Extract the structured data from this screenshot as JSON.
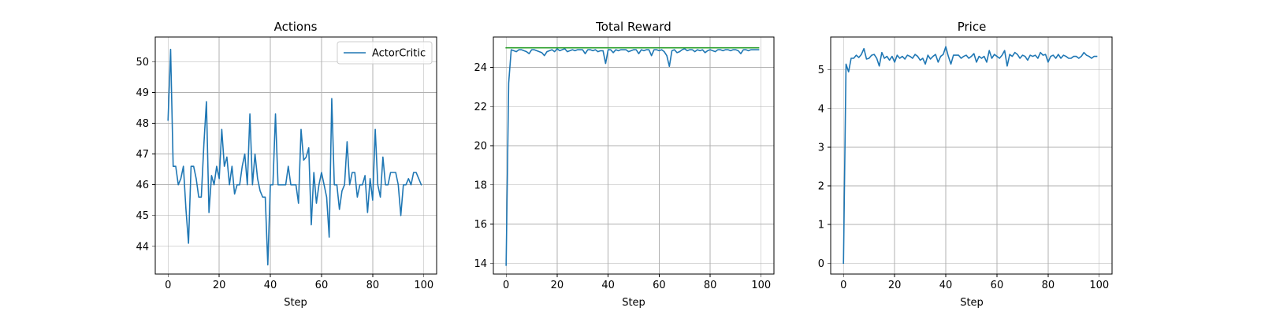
{
  "chart_data": [
    {
      "type": "line",
      "title": "Actions",
      "xlabel": "Step",
      "ylabel": "",
      "xlim": [
        -5,
        105
      ],
      "ylim": [
        43.1,
        50.8
      ],
      "xticks": [
        0,
        20,
        40,
        60,
        80,
        100
      ],
      "yticks": [
        44,
        45,
        46,
        47,
        48,
        49,
        50
      ],
      "grid": true,
      "legend": "top-right",
      "series": [
        {
          "name": "ActorCritic",
          "color": "#1f77b4",
          "x": [
            0,
            1,
            2,
            3,
            4,
            5,
            6,
            7,
            8,
            9,
            10,
            11,
            12,
            13,
            14,
            15,
            16,
            17,
            18,
            19,
            20,
            21,
            22,
            23,
            24,
            25,
            26,
            27,
            28,
            29,
            30,
            31,
            32,
            33,
            34,
            35,
            36,
            37,
            38,
            39,
            40,
            41,
            42,
            43,
            44,
            45,
            46,
            47,
            48,
            49,
            50,
            51,
            52,
            53,
            54,
            55,
            56,
            57,
            58,
            59,
            60,
            61,
            62,
            63,
            64,
            65,
            66,
            67,
            68,
            69,
            70,
            71,
            72,
            73,
            74,
            75,
            76,
            77,
            78,
            79,
            80,
            81,
            82,
            83,
            84,
            85,
            86,
            87,
            88,
            89,
            90,
            91,
            92,
            93,
            94,
            95,
            96,
            97,
            98,
            99
          ],
          "values": [
            48.1,
            50.4,
            46.6,
            46.6,
            46.0,
            46.2,
            46.6,
            45.2,
            44.1,
            46.6,
            46.6,
            46.2,
            45.6,
            45.6,
            47.3,
            48.7,
            45.1,
            46.3,
            46.0,
            46.6,
            46.2,
            47.8,
            46.6,
            46.9,
            46.0,
            46.6,
            45.7,
            46.0,
            46.0,
            46.6,
            47.0,
            46.0,
            48.3,
            46.0,
            47.0,
            46.2,
            45.8,
            45.6,
            45.6,
            43.4,
            46.0,
            46.0,
            48.3,
            46.0,
            46.0,
            46.0,
            46.0,
            46.6,
            46.0,
            46.0,
            46.0,
            45.4,
            47.8,
            46.8,
            46.9,
            47.2,
            44.7,
            46.4,
            45.4,
            46.0,
            46.4,
            46.0,
            45.6,
            44.3,
            48.8,
            46.0,
            46.0,
            45.2,
            45.8,
            46.0,
            47.4,
            46.0,
            46.4,
            46.4,
            45.6,
            46.0,
            46.0,
            46.3,
            45.1,
            46.2,
            45.5,
            47.8,
            46.0,
            45.6,
            46.9,
            46.0,
            46.0,
            46.4,
            46.4,
            46.4,
            46.0,
            45.0,
            46.0,
            46.0,
            46.2,
            46.0,
            46.4,
            46.4,
            46.2,
            46.0
          ]
        }
      ]
    },
    {
      "type": "line",
      "title": "Total Reward",
      "xlabel": "Step",
      "ylabel": "",
      "xlim": [
        -5,
        105
      ],
      "ylim": [
        13.45,
        25.55
      ],
      "xticks": [
        0,
        20,
        40,
        60,
        80,
        100
      ],
      "yticks": [
        14,
        16,
        18,
        20,
        22,
        24
      ],
      "grid": true,
      "series": [
        {
          "color": "#1f77b4",
          "x": [
            0,
            1,
            2,
            3,
            4,
            5,
            6,
            7,
            8,
            9,
            10,
            11,
            12,
            13,
            14,
            15,
            16,
            17,
            18,
            19,
            20,
            21,
            22,
            23,
            24,
            25,
            26,
            27,
            28,
            29,
            30,
            31,
            32,
            33,
            34,
            35,
            36,
            37,
            38,
            39,
            40,
            41,
            42,
            43,
            44,
            45,
            46,
            47,
            48,
            49,
            50,
            51,
            52,
            53,
            54,
            55,
            56,
            57,
            58,
            59,
            60,
            61,
            62,
            63,
            64,
            65,
            66,
            67,
            68,
            69,
            70,
            71,
            72,
            73,
            74,
            75,
            76,
            77,
            78,
            79,
            80,
            81,
            82,
            83,
            84,
            85,
            86,
            87,
            88,
            89,
            90,
            91,
            92,
            93,
            94,
            95,
            96,
            97,
            98,
            99
          ],
          "values": [
            13.9,
            23.2,
            24.9,
            24.85,
            24.8,
            24.9,
            24.9,
            24.85,
            24.8,
            24.7,
            24.9,
            24.9,
            24.85,
            24.8,
            24.75,
            24.6,
            24.8,
            24.85,
            24.9,
            24.8,
            24.95,
            24.85,
            24.9,
            24.95,
            24.8,
            24.85,
            24.9,
            24.85,
            24.9,
            24.9,
            24.9,
            24.7,
            24.9,
            24.9,
            24.85,
            24.9,
            24.8,
            24.85,
            24.85,
            24.2,
            24.9,
            24.9,
            24.75,
            24.9,
            24.85,
            24.9,
            24.9,
            24.9,
            24.8,
            24.85,
            24.9,
            24.9,
            24.7,
            24.9,
            24.85,
            24.9,
            24.9,
            24.6,
            24.9,
            24.9,
            24.85,
            24.9,
            24.8,
            24.6,
            24.05,
            24.85,
            24.9,
            24.75,
            24.8,
            24.9,
            24.95,
            24.85,
            24.9,
            24.9,
            24.8,
            24.9,
            24.85,
            24.9,
            24.75,
            24.85,
            24.9,
            24.85,
            24.8,
            24.9,
            24.9,
            24.85,
            24.9,
            24.9,
            24.85,
            24.9,
            24.9,
            24.85,
            24.7,
            24.9,
            24.9,
            24.85,
            24.9,
            24.9,
            24.9,
            24.9
          ]
        },
        {
          "color": "#2ca02c",
          "x": [
            0,
            99
          ],
          "values": [
            25.0,
            25.0
          ]
        }
      ]
    },
    {
      "type": "line",
      "title": "Price",
      "xlabel": "Step",
      "ylabel": "",
      "xlim": [
        -5,
        105
      ],
      "ylim": [
        -0.28,
        5.85
      ],
      "xticks": [
        0,
        20,
        40,
        60,
        80,
        100
      ],
      "yticks": [
        0,
        1,
        2,
        3,
        4,
        5
      ],
      "grid": true,
      "series": [
        {
          "color": "#1f77b4",
          "x": [
            0,
            1,
            2,
            3,
            4,
            5,
            6,
            7,
            8,
            9,
            10,
            11,
            12,
            13,
            14,
            15,
            16,
            17,
            18,
            19,
            20,
            21,
            22,
            23,
            24,
            25,
            26,
            27,
            28,
            29,
            30,
            31,
            32,
            33,
            34,
            35,
            36,
            37,
            38,
            39,
            40,
            41,
            42,
            43,
            44,
            45,
            46,
            47,
            48,
            49,
            50,
            51,
            52,
            53,
            54,
            55,
            56,
            57,
            58,
            59,
            60,
            61,
            62,
            63,
            64,
            65,
            66,
            67,
            68,
            69,
            70,
            71,
            72,
            73,
            74,
            75,
            76,
            77,
            78,
            79,
            80,
            81,
            82,
            83,
            84,
            85,
            86,
            87,
            88,
            89,
            90,
            91,
            92,
            93,
            94,
            95,
            96,
            97,
            98,
            99
          ],
          "values": [
            0.0,
            5.15,
            4.95,
            5.3,
            5.3,
            5.38,
            5.32,
            5.4,
            5.55,
            5.28,
            5.3,
            5.38,
            5.4,
            5.3,
            5.1,
            5.45,
            5.3,
            5.35,
            5.25,
            5.35,
            5.2,
            5.38,
            5.3,
            5.35,
            5.28,
            5.38,
            5.35,
            5.3,
            5.4,
            5.35,
            5.25,
            5.3,
            5.15,
            5.38,
            5.28,
            5.35,
            5.4,
            5.2,
            5.35,
            5.4,
            5.6,
            5.35,
            5.15,
            5.38,
            5.38,
            5.38,
            5.3,
            5.35,
            5.38,
            5.3,
            5.35,
            5.42,
            5.2,
            5.35,
            5.3,
            5.35,
            5.2,
            5.5,
            5.3,
            5.4,
            5.35,
            5.3,
            5.38,
            5.5,
            5.1,
            5.4,
            5.35,
            5.45,
            5.4,
            5.3,
            5.38,
            5.35,
            5.25,
            5.38,
            5.35,
            5.38,
            5.3,
            5.45,
            5.38,
            5.4,
            5.2,
            5.35,
            5.38,
            5.3,
            5.4,
            5.3,
            5.38,
            5.35,
            5.3,
            5.3,
            5.35,
            5.35,
            5.3,
            5.35,
            5.45,
            5.38,
            5.35,
            5.3,
            5.35,
            5.35
          ]
        }
      ]
    }
  ]
}
